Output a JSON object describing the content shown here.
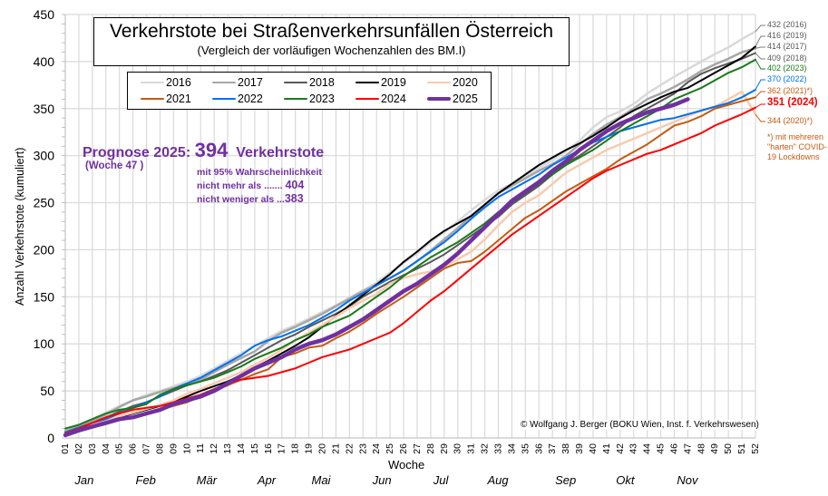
{
  "chart_data": {
    "type": "line",
    "title": "Verkehrstote bei Straßenverkehrsunfällen Österreich",
    "subtitle": "(Vergleich der vorläufigen Wochenzahlen des BM.I)",
    "xlabel": "Woche",
    "ylabel": "Anzahl Verkehrstote (kumuliert)",
    "ylim": [
      0,
      450
    ],
    "yticks": [
      0,
      50,
      100,
      150,
      200,
      250,
      300,
      350,
      400,
      450
    ],
    "x": [
      "01",
      "02",
      "03",
      "04",
      "05",
      "06",
      "07",
      "08",
      "09",
      "10",
      "11",
      "12",
      "13",
      "14",
      "15",
      "16",
      "17",
      "18",
      "19",
      "20",
      "21",
      "22",
      "23",
      "24",
      "25",
      "26",
      "27",
      "28",
      "29",
      "30",
      "31",
      "32",
      "33",
      "34",
      "35",
      "36",
      "37",
      "38",
      "39",
      "40",
      "41",
      "42",
      "43",
      "44",
      "45",
      "46",
      "47",
      "48",
      "49",
      "50",
      "51",
      "52"
    ],
    "months": [
      {
        "label": "Jan",
        "week": 2.5
      },
      {
        "label": "Feb",
        "week": 7
      },
      {
        "label": "Mär",
        "week": 11.5
      },
      {
        "label": "Apr",
        "week": 16
      },
      {
        "label": "Mai",
        "week": 20
      },
      {
        "label": "Jun",
        "week": 24.5
      },
      {
        "label": "Jul",
        "week": 29
      },
      {
        "label": "Aug",
        "week": 33
      },
      {
        "label": "Sep",
        "week": 38
      },
      {
        "label": "Okt",
        "week": 42.5
      },
      {
        "label": "Nov",
        "week": 47
      }
    ],
    "grid": true,
    "legend_position": "top-left",
    "series": [
      {
        "name": "2016",
        "color": "#d9d9d9",
        "width": 2.5,
        "values": [
          8,
          14,
          20,
          27,
          34,
          40,
          46,
          50,
          55,
          60,
          66,
          74,
          82,
          90,
          98,
          106,
          114,
          120,
          127,
          134,
          141,
          149,
          157,
          165,
          176,
          186,
          196,
          208,
          219,
          230,
          242,
          253,
          263,
          270,
          277,
          287,
          295,
          305,
          316,
          330,
          341,
          347,
          355,
          366,
          375,
          384,
          392,
          400,
          408,
          415,
          424,
          432
        ]
      },
      {
        "name": "2017",
        "color": "#a6a6a6",
        "width": 2.5,
        "values": [
          7,
          12,
          18,
          25,
          33,
          40,
          44,
          49,
          53,
          58,
          62,
          70,
          78,
          85,
          92,
          103,
          112,
          118,
          125,
          132,
          140,
          148,
          156,
          163,
          170,
          178,
          188,
          199,
          211,
          223,
          236,
          248,
          260,
          268,
          276,
          284,
          291,
          300,
          312,
          323,
          333,
          341,
          350,
          360,
          366,
          373,
          381,
          390,
          397,
          403,
          410,
          414
        ]
      },
      {
        "name": "2018",
        "color": "#595959",
        "width": 2,
        "values": [
          6,
          11,
          16,
          22,
          28,
          34,
          38,
          44,
          50,
          56,
          60,
          66,
          72,
          80,
          88,
          96,
          104,
          110,
          118,
          125,
          132,
          140,
          150,
          158,
          166,
          173,
          180,
          187,
          195,
          205,
          215,
          225,
          235,
          248,
          258,
          268,
          280,
          292,
          300,
          310,
          320,
          330,
          342,
          350,
          358,
          366,
          378,
          387,
          393,
          398,
          403,
          409
        ]
      },
      {
        "name": "2019",
        "color": "#000000",
        "width": 2,
        "values": [
          5,
          10,
          14,
          18,
          22,
          26,
          30,
          34,
          38,
          44,
          50,
          55,
          60,
          67,
          75,
          82,
          90,
          98,
          107,
          118,
          130,
          141,
          152,
          163,
          174,
          187,
          198,
          210,
          220,
          228,
          236,
          248,
          260,
          270,
          280,
          290,
          298,
          306,
          313,
          321,
          330,
          340,
          348,
          355,
          362,
          368,
          372,
          380,
          388,
          396,
          404,
          416
        ]
      },
      {
        "name": "2020",
        "color": "#f8cbad",
        "width": 2.5,
        "values": [
          4,
          9,
          14,
          18,
          23,
          27,
          31,
          35,
          40,
          47,
          52,
          58,
          64,
          70,
          78,
          85,
          94,
          104,
          112,
          120,
          129,
          138,
          146,
          153,
          164,
          170,
          174,
          177,
          182,
          190,
          198,
          211,
          226,
          240,
          250,
          258,
          270,
          282,
          290,
          298,
          306,
          312,
          318,
          324,
          330,
          336,
          342,
          348,
          352,
          360,
          368,
          344
        ]
      },
      {
        "name": "2021",
        "color": "#c55a11",
        "width": 2,
        "values": [
          3,
          7,
          11,
          15,
          19,
          22,
          26,
          30,
          34,
          38,
          44,
          50,
          56,
          62,
          68,
          73,
          86,
          90,
          96,
          98,
          106,
          113,
          122,
          132,
          141,
          150,
          160,
          170,
          180,
          186,
          188,
          198,
          210,
          222,
          234,
          242,
          252,
          262,
          270,
          278,
          286,
          296,
          304,
          312,
          322,
          332,
          336,
          342,
          350,
          354,
          358,
          362
        ]
      },
      {
        "name": "2022",
        "color": "#0070f0",
        "width": 2,
        "values": [
          6,
          11,
          16,
          20,
          26,
          32,
          38,
          44,
          52,
          58,
          64,
          72,
          80,
          88,
          98,
          104,
          108,
          114,
          120,
          128,
          136,
          146,
          154,
          162,
          170,
          178,
          188,
          198,
          208,
          220,
          233,
          245,
          256,
          264,
          272,
          280,
          290,
          298,
          306,
          314,
          320,
          326,
          330,
          334,
          338,
          340,
          344,
          348,
          352,
          356,
          362,
          370
        ]
      },
      {
        "name": "2023",
        "color": "#1a7a1a",
        "width": 2,
        "values": [
          10,
          14,
          20,
          26,
          30,
          32,
          36,
          46,
          52,
          56,
          60,
          64,
          70,
          76,
          84,
          90,
          96,
          104,
          110,
          118,
          124,
          130,
          140,
          150,
          160,
          172,
          182,
          192,
          200,
          208,
          218,
          228,
          240,
          250,
          260,
          270,
          280,
          290,
          298,
          306,
          316,
          326,
          334,
          342,
          350,
          360,
          366,
          372,
          380,
          388,
          394,
          402
        ]
      },
      {
        "name": "2024",
        "color": "#ff0000",
        "width": 2,
        "values": [
          5,
          10,
          16,
          22,
          26,
          30,
          32,
          34,
          38,
          42,
          46,
          52,
          58,
          62,
          64,
          66,
          70,
          74,
          80,
          86,
          90,
          94,
          100,
          106,
          112,
          122,
          134,
          146,
          156,
          168,
          180,
          192,
          204,
          216,
          226,
          236,
          246,
          256,
          266,
          276,
          284,
          290,
          296,
          302,
          306,
          312,
          318,
          324,
          332,
          338,
          344,
          351
        ]
      },
      {
        "name": "2025",
        "color": "#7030a0",
        "width": 4.5,
        "values": [
          3,
          8,
          12,
          16,
          20,
          22,
          26,
          30,
          36,
          40,
          44,
          50,
          58,
          66,
          74,
          80,
          86,
          94,
          100,
          104,
          110,
          118,
          126,
          136,
          146,
          156,
          164,
          174,
          184,
          196,
          210,
          224,
          238,
          252,
          262,
          272,
          284,
          294,
          306,
          316,
          326,
          334,
          340,
          346,
          350,
          354,
          360,
          null,
          null,
          null,
          null,
          null
        ]
      }
    ],
    "end_labels": [
      {
        "text": "432 (2016)",
        "color": "#595959"
      },
      {
        "text": "416 (2019)",
        "color": "#595959"
      },
      {
        "text": "414 (2017)",
        "color": "#595959"
      },
      {
        "text": "409 (2018)",
        "color": "#595959"
      },
      {
        "text": "402 (2023)",
        "color": "#1a7a1a"
      },
      {
        "text": "370 (2022)",
        "color": "#0070f0"
      },
      {
        "text": "362 (2021)*)",
        "color": "#c55a11"
      },
      {
        "text": "351 (2024)",
        "color": "#ff0000"
      },
      {
        "text": "344 (2020)*)",
        "color": "#c55a11"
      }
    ],
    "note": [
      "*) mit mehreren",
      "\"harten\" COVID-",
      "19 Lockdowns"
    ],
    "annotations": {
      "prognose_label": "Prognose 2025:",
      "prognose_value": "394",
      "prognose_unit": "Verkehrstote",
      "prognose_week": "(Woche 47 )",
      "prob_line": "mit 95% Wahrscheinlichkeit",
      "max_label": "nicht mehr als .......",
      "max_value": "404",
      "min_label": "nicht weniger als ...",
      "min_value": "383"
    },
    "credit": "© Wolfgang J. Berger (BOKU Wien, Inst. f. Verkehrswesen)"
  }
}
